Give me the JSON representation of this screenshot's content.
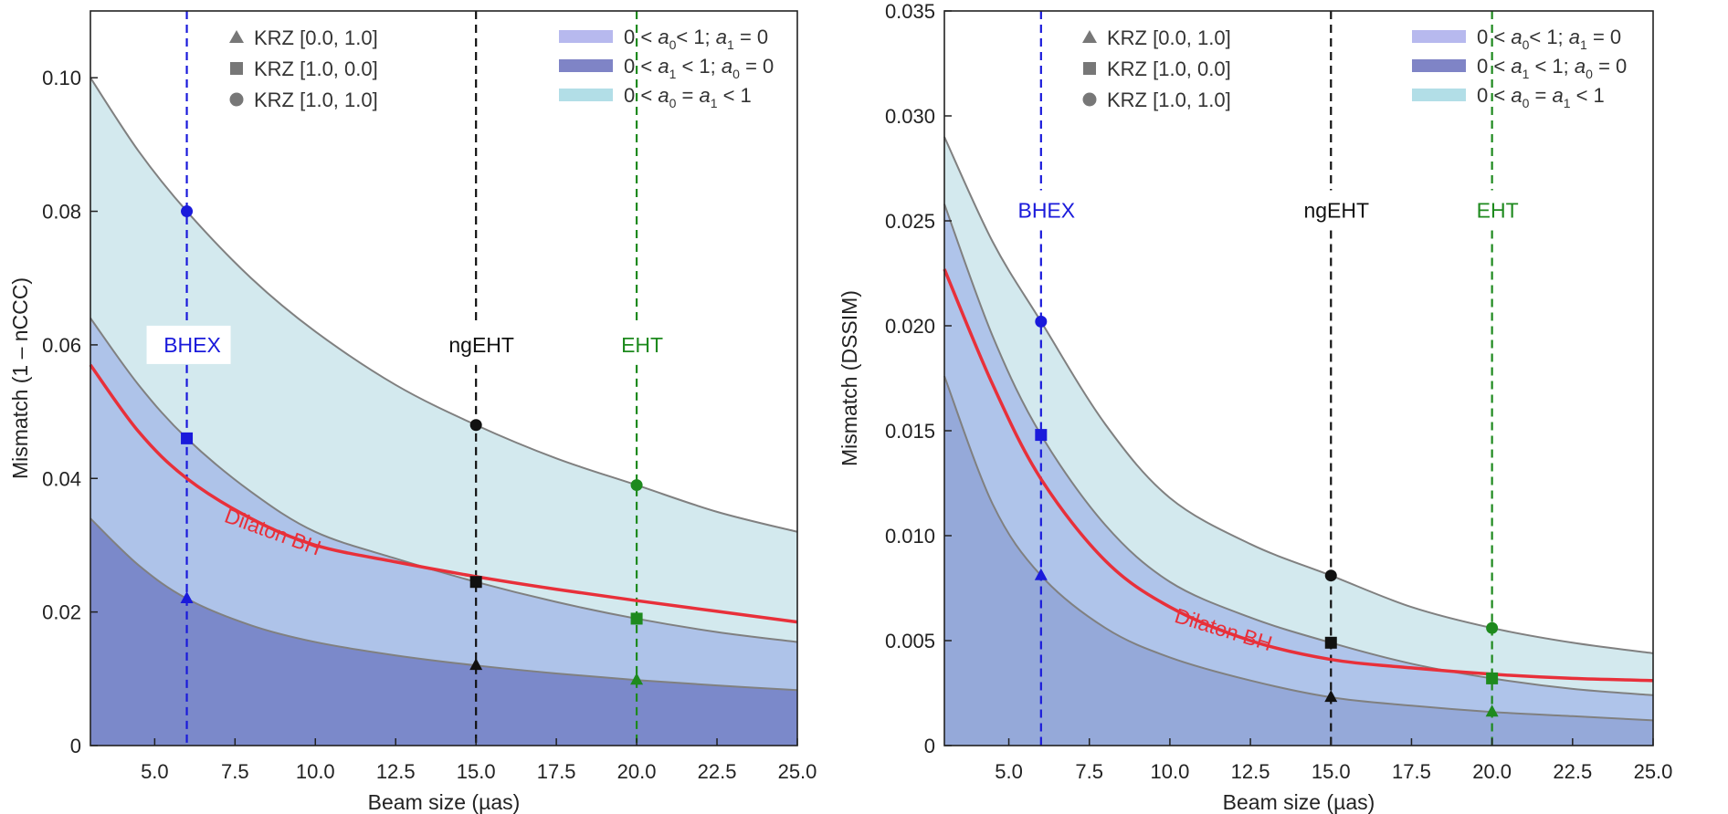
{
  "chart_data": [
    {
      "type": "area",
      "xlabel": "Beam size (µas)",
      "ylabel": "Mismatch (1 – nCCC)",
      "xlim": [
        3,
        25
      ],
      "ylim": [
        0,
        0.11
      ],
      "xticks": [
        "5.0",
        "7.5",
        "10.0",
        "12.5",
        "15.0",
        "17.5",
        "20.0",
        "22.5",
        "25.0"
      ],
      "xtick_values": [
        5,
        7.5,
        10,
        12.5,
        15,
        17.5,
        20,
        22.5,
        25
      ],
      "yticks": [
        "0",
        "0.02",
        "0.04",
        "0.06",
        "0.08",
        "0.10"
      ],
      "ytick_values": [
        0,
        0.02,
        0.04,
        0.06,
        0.08,
        0.1
      ],
      "grid": false,
      "x": [
        3,
        4.5,
        6,
        8,
        10,
        12.5,
        15,
        17.5,
        20,
        22.5,
        25
      ],
      "series": [
        {
          "name": "KRZ [1.0, 1.0]",
          "marker": "circle",
          "band": "0 < a0 = a1 < 1",
          "values": [
            0.1,
            0.089,
            0.08,
            0.07,
            0.062,
            0.054,
            0.048,
            0.043,
            0.039,
            0.035,
            0.032
          ]
        },
        {
          "name": "KRZ [1.0, 0.0]",
          "marker": "square",
          "band": "0 < a0 < 1; a1 = 0",
          "values": [
            0.064,
            0.054,
            0.046,
            0.038,
            0.032,
            0.028,
            0.0245,
            0.0215,
            0.019,
            0.017,
            0.0155
          ]
        },
        {
          "name": "KRZ [0.0, 1.0]",
          "marker": "triangle",
          "band": "0 < a1 < 1; a0 = 0",
          "values": [
            0.034,
            0.027,
            0.022,
            0.018,
            0.0155,
            0.0135,
            0.012,
            0.0108,
            0.0098,
            0.009,
            0.0083
          ]
        },
        {
          "name": "Dilaton BH",
          "values": [
            0.057,
            0.047,
            0.04,
            0.034,
            0.03,
            0.0275,
            0.0253,
            0.0234,
            0.0217,
            0.0201,
            0.0185
          ]
        }
      ],
      "markers": [
        {
          "x": 6,
          "circle": 0.08,
          "square": 0.046,
          "triangle": 0.022
        },
        {
          "x": 15,
          "circle": 0.048,
          "square": 0.0245,
          "triangle": 0.012
        },
        {
          "x": 20,
          "circle": 0.039,
          "square": 0.019,
          "triangle": 0.0098
        }
      ],
      "label_y": 0.06,
      "dilaton_label_pos": {
        "x": 8.6,
        "y": 0.031
      }
    },
    {
      "type": "area",
      "xlabel": "Beam size (µas)",
      "ylabel": "Mismatch (DSSIM)",
      "xlim": [
        3,
        25
      ],
      "ylim": [
        0,
        0.035
      ],
      "xticks": [
        "5.0",
        "7.5",
        "10.0",
        "12.5",
        "15.0",
        "17.5",
        "20.0",
        "22.5",
        "25.0"
      ],
      "xtick_values": [
        5,
        7.5,
        10,
        12.5,
        15,
        17.5,
        20,
        22.5,
        25
      ],
      "yticks": [
        "0",
        "0.005",
        "0.010",
        "0.015",
        "0.020",
        "0.025",
        "0.030",
        "0.035"
      ],
      "ytick_values": [
        0,
        0.005,
        0.01,
        0.015,
        0.02,
        0.025,
        0.03,
        0.035
      ],
      "grid": false,
      "x": [
        3,
        4.5,
        6,
        8,
        10,
        12.5,
        15,
        17.5,
        20,
        22.5,
        25
      ],
      "series": [
        {
          "name": "KRZ [1.0, 1.0]",
          "marker": "circle",
          "band": "0 < a0 = a1 < 1",
          "values": [
            0.029,
            0.024,
            0.0202,
            0.0153,
            0.0118,
            0.0096,
            0.0081,
            0.0066,
            0.0056,
            0.0049,
            0.0044
          ]
        },
        {
          "name": "KRZ [1.0, 0.0]",
          "marker": "square",
          "band": "0 < a0 < 1; a1 = 0",
          "values": [
            0.0258,
            0.0195,
            0.0148,
            0.0105,
            0.0078,
            0.0061,
            0.0049,
            0.0039,
            0.0032,
            0.0027,
            0.0024
          ]
        },
        {
          "name": "KRZ [0.0, 1.0]",
          "marker": "triangle",
          "band": "0 < a1 < 1; a0 = 0",
          "values": [
            0.0176,
            0.0115,
            0.0081,
            0.0056,
            0.0042,
            0.0031,
            0.0023,
            0.0019,
            0.0016,
            0.0014,
            0.0012
          ]
        },
        {
          "name": "Dilaton BH",
          "values": [
            0.0227,
            0.0172,
            0.0127,
            0.0088,
            0.0066,
            0.005,
            0.0041,
            0.0037,
            0.0034,
            0.0032,
            0.0031
          ]
        }
      ],
      "markers": [
        {
          "x": 6,
          "circle": 0.0202,
          "square": 0.0148,
          "triangle": 0.0081
        },
        {
          "x": 15,
          "circle": 0.0081,
          "square": 0.0049,
          "triangle": 0.0023
        },
        {
          "x": 20,
          "circle": 0.0056,
          "square": 0.0032,
          "triangle": 0.0016
        }
      ],
      "label_y": 0.0255,
      "dilaton_label_pos": {
        "x": 11.6,
        "y": 0.0052
      }
    }
  ],
  "telescopes": [
    {
      "label": "BHEX",
      "x": 6,
      "color": "#1a1adb"
    },
    {
      "label": "ngEHT",
      "x": 15,
      "color": "#111111"
    },
    {
      "label": "EHT",
      "x": 20,
      "color": "#1e8a1e"
    }
  ],
  "dilaton_label": "Dilaton BH",
  "dilaton_color": "#e8303a",
  "marker_legend": [
    "KRZ [0.0, 1.0]",
    "KRZ [1.0, 0.0]",
    "KRZ [1.0, 1.0]"
  ],
  "band_legend": [
    {
      "segments": [
        [
          "t",
          "0 < "
        ],
        [
          "i",
          "a"
        ],
        [
          "s",
          "0"
        ],
        [
          "t",
          "< 1; "
        ],
        [
          "i",
          "a"
        ],
        [
          "s",
          "1"
        ],
        [
          "t",
          " = 0"
        ]
      ],
      "color": "#b7b9ee"
    },
    {
      "segments": [
        [
          "t",
          "0 < "
        ],
        [
          "i",
          "a"
        ],
        [
          "s",
          "1"
        ],
        [
          "t",
          " < 1; "
        ],
        [
          "i",
          "a"
        ],
        [
          "s",
          "0"
        ],
        [
          "t",
          " = 0"
        ]
      ],
      "color": "#7f84c6"
    },
    {
      "segments": [
        [
          "t",
          "0 < "
        ],
        [
          "i",
          "a"
        ],
        [
          "s",
          "0"
        ],
        [
          "t",
          " = "
        ],
        [
          "i",
          "a"
        ],
        [
          "s",
          "1"
        ],
        [
          "t",
          " < 1"
        ]
      ],
      "color": "#b2dee7"
    }
  ],
  "fill_colors": {
    "left": {
      "top": "#d3e9ee",
      "mid": "#aec3e9",
      "bottom": "#7b89ca"
    },
    "right": {
      "top": "#d3e9ee",
      "mid": "#afc4ea",
      "bottom": "#95a9d9"
    }
  }
}
